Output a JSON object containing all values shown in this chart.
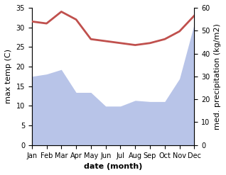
{
  "months": [
    "Jan",
    "Feb",
    "Mar",
    "Apr",
    "May",
    "Jun",
    "Jul",
    "Aug",
    "Sep",
    "Oct",
    "Nov",
    "Dec"
  ],
  "temperature": [
    31.5,
    31.0,
    34.0,
    32.0,
    27.0,
    26.5,
    26.0,
    25.5,
    26.0,
    27.0,
    29.0,
    33.0
  ],
  "precipitation_mm": [
    30,
    31,
    33,
    23,
    23,
    17,
    17,
    19.5,
    19,
    19,
    29,
    53
  ],
  "temp_color": "#c0504d",
  "precip_color": "#b8c4e8",
  "background_color": "#ffffff",
  "ylim_temp": [
    0,
    35
  ],
  "ylim_precip": [
    0,
    60
  ],
  "ylabel_left": "max temp (C)",
  "ylabel_right": "med. precipitation (kg/m2)",
  "xlabel": "date (month)",
  "temp_linewidth": 2.0,
  "label_fontsize": 8,
  "tick_fontsize": 7
}
